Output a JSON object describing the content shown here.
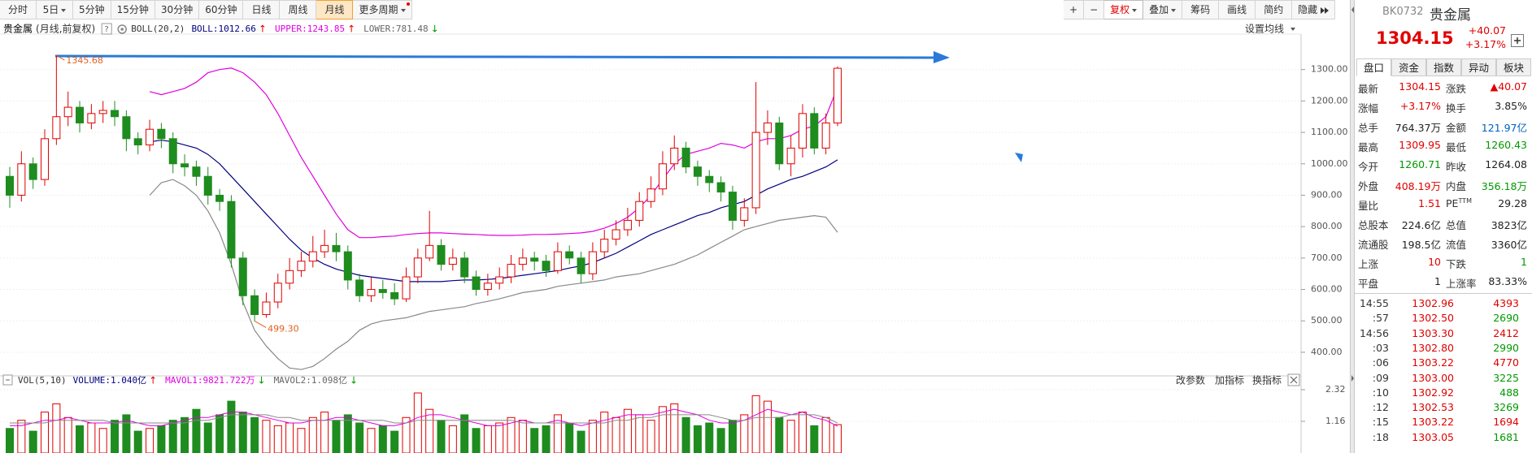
{
  "toolbar": {
    "tabs": [
      {
        "text": "分时"
      },
      {
        "text": "5日",
        "menu": true
      },
      {
        "text": "5分钟"
      },
      {
        "text": "15分钟"
      },
      {
        "text": "30分钟"
      },
      {
        "text": "60分钟"
      },
      {
        "text": "日线"
      },
      {
        "text": "周线"
      },
      {
        "text": "月线"
      },
      {
        "text": "更多周期",
        "menu": true,
        "badge": true
      }
    ],
    "active_tab": 8,
    "tools": [
      {
        "text": "+"
      },
      {
        "text": "−"
      },
      {
        "text": "复权",
        "menu": true
      },
      {
        "text": "叠加",
        "menu": true
      },
      {
        "text": "筹码"
      },
      {
        "text": "画线"
      },
      {
        "text": "简约"
      },
      {
        "text": "隐藏",
        "collapse": true
      }
    ],
    "active_tool": 2
  },
  "chart_data": {
    "type": "candlestick",
    "title": "贵金属",
    "subtitle": "(月线,前复权)",
    "help": "?",
    "indicator": "BOLL(20,2)",
    "legend": [
      {
        "text": "BOLL:1012.66",
        "arrow": "↑",
        "color": "#000080",
        "arrow_color": "#e00000"
      },
      {
        "text": "UPPER:1243.85",
        "arrow": "↑",
        "color": "#e000e0",
        "arrow_color": "#e00000"
      },
      {
        "text": "LOWER:781.48",
        "arrow": "↓",
        "color": "#666666",
        "arrow_color": "#009900"
      }
    ],
    "settings_label": "设置均线",
    "up_color": "#e00000",
    "down_color": "#1e8c1e",
    "open": [
      960,
      900,
      1000,
      950,
      1080,
      1150,
      1180,
      1130,
      1160,
      1170,
      1150,
      1080,
      1060,
      1110,
      1080,
      1000,
      990,
      960,
      900,
      880,
      700,
      580,
      520,
      560,
      620,
      660,
      690,
      720,
      740,
      720,
      630,
      580,
      600,
      590,
      570,
      640,
      700,
      740,
      680,
      700,
      640,
      600,
      620,
      640,
      680,
      700,
      690,
      660,
      720,
      700,
      650,
      720,
      760,
      790,
      820,
      880,
      920,
      1000,
      1050,
      990,
      960,
      940,
      910,
      820,
      860,
      1100,
      1130,
      1000,
      1050,
      1160,
      1050,
      1130
    ],
    "high": [
      990,
      1040,
      1020,
      1110,
      1345.68,
      1230,
      1200,
      1190,
      1200,
      1200,
      1170,
      1100,
      1140,
      1130,
      1100,
      1030,
      1010,
      990,
      920,
      900,
      720,
      600,
      590,
      650,
      700,
      720,
      770,
      790,
      780,
      740,
      650,
      640,
      630,
      620,
      670,
      730,
      850,
      760,
      730,
      720,
      660,
      650,
      670,
      710,
      730,
      720,
      710,
      750,
      740,
      720,
      750,
      790,
      820,
      860,
      910,
      960,
      1040,
      1090,
      1070,
      1010,
      980,
      960,
      930,
      890,
      1260,
      1170,
      1150,
      1090,
      1190,
      1180,
      1160,
      1309.95
    ],
    "low": [
      860,
      880,
      920,
      930,
      1060,
      1120,
      1100,
      1110,
      1130,
      1120,
      1040,
      1030,
      1040,
      1050,
      970,
      960,
      930,
      870,
      850,
      670,
      550,
      499.3,
      510,
      540,
      600,
      640,
      670,
      700,
      690,
      600,
      560,
      560,
      570,
      550,
      560,
      620,
      690,
      660,
      660,
      620,
      580,
      580,
      600,
      620,
      660,
      660,
      640,
      650,
      680,
      620,
      630,
      700,
      740,
      770,
      800,
      860,
      900,
      980,
      970,
      930,
      910,
      880,
      790,
      800,
      840,
      1060,
      980,
      960,
      1020,
      1030,
      1030,
      1120
    ],
    "close": [
      900,
      1000,
      950,
      1080,
      1150,
      1180,
      1130,
      1160,
      1170,
      1150,
      1080,
      1060,
      1110,
      1080,
      1000,
      990,
      960,
      900,
      880,
      700,
      580,
      520,
      560,
      620,
      660,
      690,
      720,
      740,
      720,
      630,
      580,
      600,
      590,
      570,
      640,
      700,
      740,
      680,
      700,
      640,
      600,
      620,
      640,
      680,
      700,
      690,
      660,
      720,
      700,
      650,
      720,
      760,
      790,
      820,
      880,
      920,
      1000,
      1050,
      990,
      960,
      940,
      910,
      820,
      860,
      1100,
      1130,
      1000,
      1050,
      1160,
      1050,
      1130,
      1304.15
    ],
    "series": [
      {
        "name": "UPPER",
        "color": "#e000e0",
        "values": [
          null,
          null,
          null,
          null,
          null,
          null,
          null,
          null,
          null,
          null,
          null,
          null,
          1230,
          1220,
          1230,
          1240,
          1260,
          1290,
          1300,
          1305,
          1290,
          1260,
          1220,
          1160,
          1090,
          1020,
          960,
          900,
          840,
          790,
          765,
          765,
          768,
          770,
          775,
          778,
          780,
          780,
          778,
          776,
          775,
          773,
          772,
          772,
          773,
          775,
          775,
          776,
          778,
          780,
          785,
          795,
          810,
          830,
          860,
          900,
          950,
          1000,
          1030,
          1040,
          1050,
          1065,
          1060,
          1050,
          1070,
          1080,
          1080,
          1090,
          1110,
          1120,
          1150,
          1243.85
        ]
      },
      {
        "name": "BOLL",
        "color": "#000080",
        "values": [
          null,
          null,
          null,
          null,
          null,
          null,
          null,
          null,
          null,
          null,
          null,
          null,
          1070,
          1075,
          1070,
          1060,
          1050,
          1030,
          1000,
          960,
          920,
          880,
          840,
          800,
          760,
          725,
          700,
          680,
          665,
          655,
          645,
          640,
          635,
          630,
          625,
          625,
          625,
          625,
          628,
          630,
          630,
          632,
          635,
          640,
          645,
          650,
          655,
          660,
          668,
          675,
          685,
          700,
          715,
          735,
          755,
          775,
          790,
          805,
          820,
          835,
          845,
          860,
          870,
          880,
          900,
          920,
          935,
          950,
          960,
          975,
          990,
          1012.66
        ]
      },
      {
        "name": "LOWER",
        "color": "#888888",
        "values": [
          null,
          null,
          null,
          null,
          null,
          null,
          null,
          null,
          null,
          null,
          null,
          null,
          900,
          940,
          950,
          930,
          900,
          850,
          780,
          680,
          560,
          470,
          420,
          380,
          350,
          345,
          355,
          380,
          410,
          435,
          470,
          490,
          500,
          505,
          510,
          520,
          530,
          535,
          540,
          545,
          555,
          562,
          570,
          580,
          590,
          595,
          600,
          610,
          615,
          620,
          625,
          630,
          640,
          645,
          650,
          660,
          670,
          680,
          695,
          710,
          730,
          750,
          770,
          790,
          800,
          810,
          820,
          825,
          830,
          835,
          830,
          781.48
        ]
      }
    ],
    "ylim": [
      330,
      1400
    ],
    "yticks": [
      {
        "value": 1300,
        "label": "1300.00"
      },
      {
        "value": 1200,
        "label": "1200.00"
      },
      {
        "value": 1100,
        "label": "1100.00"
      },
      {
        "value": 1000,
        "label": "1000.00"
      },
      {
        "value": 900,
        "label": "900.00"
      },
      {
        "value": 800,
        "label": "800.00"
      },
      {
        "value": 700,
        "label": "700.00"
      },
      {
        "value": 600,
        "label": "600.00"
      },
      {
        "value": 500,
        "label": "500.00"
      },
      {
        "value": 400,
        "label": "400.00"
      }
    ],
    "grid": true,
    "annotations": {
      "high_label": "1345.68",
      "low_label": "499.30"
    },
    "volume": {
      "type": "bar",
      "title": "VOL(5,10)",
      "legend": [
        {
          "text": "VOLUME:1.040亿",
          "arrow": "↑",
          "color": "#000080",
          "arrow_color": "#e00000"
        },
        {
          "text": "MAVOL1:9821.722万",
          "arrow": "↓",
          "color": "#e000e0",
          "arrow_color": "#009900"
        },
        {
          "text": "MAVOL2:1.098亿",
          "arrow": "↓",
          "color": "#666666",
          "arrow_color": "#009900"
        }
      ],
      "tools": [
        "改参数",
        "加指标",
        "换指标"
      ],
      "values": [
        0.9,
        1.2,
        0.8,
        1.5,
        1.8,
        1.3,
        1.0,
        1.1,
        0.9,
        1.2,
        1.4,
        0.8,
        0.9,
        1.0,
        1.2,
        1.3,
        1.6,
        1.1,
        1.4,
        1.9,
        1.5,
        1.3,
        1.2,
        1.0,
        1.1,
        0.9,
        1.3,
        1.5,
        1.2,
        1.4,
        1.1,
        0.9,
        1.0,
        0.8,
        1.3,
        2.2,
        1.6,
        1.2,
        1.0,
        1.4,
        0.9,
        1.0,
        1.1,
        1.3,
        1.2,
        0.9,
        1.0,
        1.4,
        1.1,
        0.8,
        1.2,
        1.5,
        1.3,
        1.6,
        1.4,
        1.2,
        1.7,
        1.8,
        1.3,
        1.0,
        1.1,
        0.9,
        1.2,
        1.4,
        2.1,
        1.9,
        1.3,
        1.2,
        1.5,
        1.0,
        1.3,
        1.04
      ],
      "series": [
        {
          "name": "MAVOL1",
          "color": "#e000e0",
          "values": [
            1.0,
            1.0,
            1.1,
            1.2,
            1.2,
            1.3,
            1.2,
            1.1,
            1.1,
            1.1,
            1.2,
            1.1,
            1.0,
            1.0,
            1.1,
            1.2,
            1.3,
            1.3,
            1.4,
            1.5,
            1.5,
            1.4,
            1.3,
            1.2,
            1.1,
            1.1,
            1.2,
            1.2,
            1.3,
            1.3,
            1.2,
            1.1,
            1.0,
            1.0,
            1.1,
            1.3,
            1.4,
            1.4,
            1.3,
            1.2,
            1.1,
            1.0,
            1.0,
            1.1,
            1.2,
            1.1,
            1.1,
            1.2,
            1.1,
            1.0,
            1.1,
            1.2,
            1.3,
            1.4,
            1.4,
            1.4,
            1.5,
            1.6,
            1.5,
            1.4,
            1.2,
            1.1,
            1.1,
            1.2,
            1.4,
            1.6,
            1.5,
            1.4,
            1.5,
            1.3,
            1.2,
            0.98
          ]
        },
        {
          "name": "MAVOL2",
          "color": "#888888",
          "values": [
            1.1,
            1.1,
            1.1,
            1.1,
            1.2,
            1.2,
            1.2,
            1.2,
            1.2,
            1.1,
            1.1,
            1.1,
            1.1,
            1.1,
            1.1,
            1.1,
            1.2,
            1.2,
            1.3,
            1.4,
            1.4,
            1.4,
            1.4,
            1.3,
            1.3,
            1.2,
            1.2,
            1.2,
            1.2,
            1.2,
            1.2,
            1.2,
            1.2,
            1.1,
            1.1,
            1.2,
            1.2,
            1.2,
            1.2,
            1.2,
            1.2,
            1.2,
            1.2,
            1.2,
            1.1,
            1.1,
            1.1,
            1.1,
            1.1,
            1.1,
            1.1,
            1.1,
            1.2,
            1.2,
            1.3,
            1.3,
            1.4,
            1.4,
            1.4,
            1.4,
            1.4,
            1.3,
            1.2,
            1.2,
            1.3,
            1.3,
            1.3,
            1.4,
            1.4,
            1.4,
            1.3,
            1.098
          ]
        }
      ],
      "ylim": [
        0,
        2.32
      ],
      "yticks": [
        2.32,
        1.16
      ]
    }
  },
  "quote_panel": {
    "code": "BK0732",
    "name": "贵金属",
    "price": "1304.15",
    "change": "+40.07",
    "change_pct": "+3.17%",
    "tabs": [
      "盘口",
      "资金",
      "指数",
      "异动",
      "板块"
    ],
    "active_tab": 0,
    "rows": [
      [
        {
          "label": "最新",
          "value": "1304.15",
          "color": "#e00000"
        },
        {
          "label": "涨跌",
          "value": "▲40.07",
          "color": "#e00000"
        }
      ],
      [
        {
          "label": "涨幅",
          "value": "+3.17%",
          "color": "#e00000"
        },
        {
          "label": "换手",
          "value": "3.85%",
          "color": "#222222"
        }
      ],
      [
        {
          "label": "总手",
          "value": "764.37万",
          "color": "#222222"
        },
        {
          "label": "金额",
          "value": "121.97亿",
          "color": "#0060c0"
        }
      ],
      [
        {
          "label": "最高",
          "value": "1309.95",
          "color": "#e00000"
        },
        {
          "label": "最低",
          "value": "1260.43",
          "color": "#009900"
        }
      ],
      [
        {
          "label": "今开",
          "value": "1260.71",
          "color": "#009900"
        },
        {
          "label": "昨收",
          "value": "1264.08",
          "color": "#222222"
        }
      ],
      [
        {
          "label": "外盘",
          "value": "408.19万",
          "color": "#e00000"
        },
        {
          "label": "内盘",
          "value": "356.18万",
          "color": "#009900"
        }
      ],
      [
        {
          "label": "量比",
          "value": "1.51",
          "color": "#e00000"
        },
        {
          "label": "PE",
          "sup": "TTM",
          "value": "29.28",
          "color": "#222222"
        }
      ],
      [
        {
          "label": "总股本",
          "value": "224.6亿",
          "color": "#222222"
        },
        {
          "label": "总值",
          "value": "3823亿",
          "color": "#222222"
        }
      ],
      [
        {
          "label": "流通股",
          "value": "198.5亿",
          "color": "#222222"
        },
        {
          "label": "流值",
          "value": "3360亿",
          "color": "#222222"
        }
      ],
      [
        {
          "label": "上涨",
          "value": "10",
          "color": "#e00000"
        },
        {
          "label": "下跌",
          "value": "1",
          "color": "#009900"
        }
      ],
      [
        {
          "label": "平盘",
          "value": "1",
          "color": "#222222"
        },
        {
          "label": "上涨率",
          "value": "83.33%",
          "color": "#222222"
        }
      ]
    ],
    "ticks": [
      {
        "time": "14:55",
        "price": "1302.96",
        "volume": "4393",
        "color": "#e00000"
      },
      {
        "time": ":57",
        "price": "1302.50",
        "volume": "2690",
        "color": "#009900"
      },
      {
        "time": "14:56",
        "price": "1303.30",
        "volume": "2412",
        "color": "#e00000"
      },
      {
        "time": ":03",
        "price": "1302.80",
        "volume": "2990",
        "color": "#009900"
      },
      {
        "time": ":06",
        "price": "1303.22",
        "volume": "4770",
        "color": "#e00000"
      },
      {
        "time": ":09",
        "price": "1303.00",
        "volume": "3225",
        "color": "#009900"
      },
      {
        "time": ":10",
        "price": "1302.92",
        "volume": "488",
        "color": "#009900"
      },
      {
        "time": ":12",
        "price": "1302.53",
        "volume": "3269",
        "color": "#009900"
      },
      {
        "time": ":15",
        "price": "1303.22",
        "volume": "1694",
        "color": "#e00000"
      },
      {
        "time": ":18",
        "price": "1303.05",
        "volume": "1681",
        "color": "#009900"
      }
    ],
    "tick_price_color": "#e00000"
  }
}
